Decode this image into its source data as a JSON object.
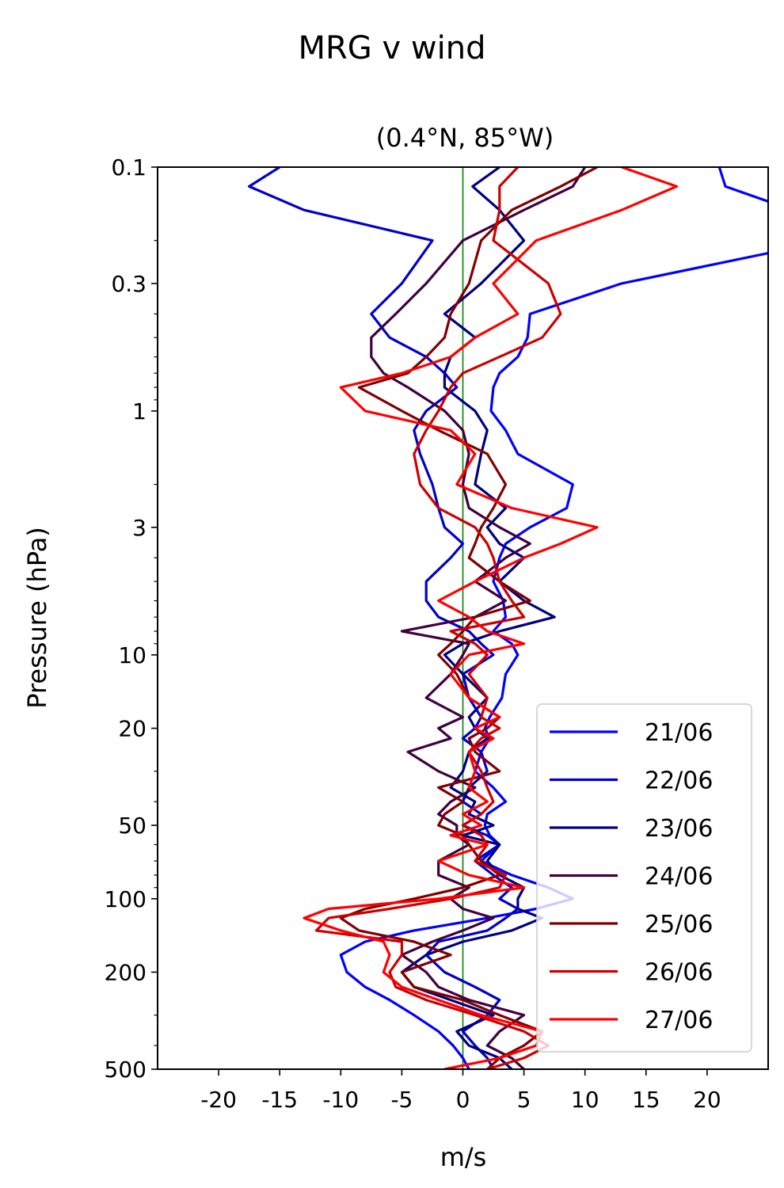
{
  "chart_data": {
    "type": "line",
    "title": "MRG v wind",
    "subtitle": "(0.4°N, 85°W)",
    "xlabel": "m/s",
    "ylabel": "Pressure (hPa)",
    "xlim": [
      -25,
      25
    ],
    "ylim": [
      500,
      0.1
    ],
    "yscale": "log",
    "grid": false,
    "legend_position": "lower-right",
    "x_ticks": [
      -20,
      -15,
      -10,
      -5,
      0,
      5,
      10,
      15,
      20
    ],
    "x_tick_labels": [
      "-20",
      "-15",
      "-10",
      "-5",
      "0",
      "5",
      "10",
      "15",
      "20"
    ],
    "y_ticks": [
      0.1,
      0.3,
      1,
      3,
      10,
      20,
      50,
      100,
      200,
      500
    ],
    "y_tick_labels": [
      "0.1",
      "0.3",
      "1",
      "3",
      "10",
      "20",
      "50",
      "100",
      "200",
      "500"
    ],
    "zero_line_color": "#008000",
    "pressure_levels": [
      0.1,
      0.12,
      0.15,
      0.2,
      0.3,
      0.4,
      0.5,
      0.6,
      0.7,
      0.8,
      1,
      1.2,
      1.5,
      2,
      2.5,
      3,
      3.5,
      4,
      5,
      6,
      7,
      8,
      9,
      10,
      12,
      15,
      18,
      20,
      22,
      25,
      30,
      35,
      40,
      45,
      50,
      55,
      60,
      70,
      80,
      90,
      100,
      110,
      120,
      135,
      150,
      170,
      200,
      230,
      260,
      300,
      350,
      400,
      450,
      500
    ],
    "series": [
      {
        "name": "21/06",
        "color": "#0000ff",
        "values": [
          21,
          21.5,
          27,
          30,
          13,
          5.5,
          5.3,
          4.5,
          3,
          2.5,
          2.3,
          3.5,
          4.5,
          9,
          8.5,
          5.5,
          3.5,
          3,
          2.5,
          3.3,
          3.5,
          2.5,
          4,
          4.5,
          3.5,
          3.2,
          2.2,
          1.8,
          2.2,
          1.5,
          1,
          2.5,
          3.5,
          2,
          1.8,
          2.2,
          3,
          1.5,
          4,
          7,
          9,
          6,
          2,
          -4,
          -8,
          -10,
          -9.5,
          -8,
          -6,
          -4,
          -2,
          -0.8,
          0,
          0.5
        ]
      },
      {
        "name": "22/06",
        "color": "#0000cc",
        "values": [
          -15,
          -17.5,
          -13,
          -2.5,
          -5,
          -7.5,
          -6,
          -3,
          -1.5,
          -0.5,
          -3,
          -4,
          -3.5,
          -2.5,
          -2,
          -1.5,
          0,
          -1,
          -3,
          -3,
          -2,
          0.5,
          1.5,
          2.5,
          0,
          0.5,
          1.5,
          1,
          0,
          1.5,
          2,
          0.5,
          0,
          1.5,
          0,
          2,
          3,
          1,
          2.5,
          4,
          3,
          4.5,
          3.5,
          2,
          -2,
          -3,
          -1.5,
          1,
          3,
          2,
          0,
          1,
          2,
          2.5
        ]
      },
      {
        "name": "23/06",
        "color": "#000080",
        "values": [
          3,
          0.8,
          3,
          5,
          1.5,
          -1.5,
          1,
          -1,
          -1.5,
          -1.5,
          1,
          2,
          1.5,
          1,
          3.5,
          2,
          3,
          5,
          3,
          5,
          7.5,
          3,
          0,
          -1.5,
          0,
          2,
          0.5,
          1,
          2,
          0.5,
          0,
          -1,
          1,
          0.5,
          2.5,
          0,
          3,
          2,
          3,
          5,
          4.5,
          4.5,
          6.5,
          4,
          0,
          -3,
          -5,
          -4,
          -1,
          2.5,
          -0.5,
          0.5,
          3,
          4
        ]
      },
      {
        "name": "24/06",
        "color": "#400040",
        "values": [
          10,
          9,
          5,
          0,
          -3,
          -5.5,
          -7.5,
          -7.5,
          -6.5,
          -4.5,
          -1.5,
          0,
          0.5,
          0,
          0.5,
          3,
          5.5,
          3.5,
          1,
          3.5,
          1,
          -5,
          0.5,
          0,
          -1,
          -3,
          0,
          -2,
          -1,
          -4.5,
          -2,
          1,
          -1,
          -2,
          -0.5,
          -0.5,
          0.5,
          -2,
          -2,
          0.5,
          -1,
          0,
          2.5,
          0,
          -2.5,
          -5,
          -3,
          -2,
          0.5,
          5,
          3,
          2,
          4,
          5
        ]
      },
      {
        "name": "25/06",
        "color": "#800000",
        "values": [
          11,
          8,
          4,
          1.5,
          0.5,
          -1,
          -1.5,
          -3,
          -4.5,
          -8.5,
          -5,
          -2,
          2,
          3.5,
          2.5,
          1.5,
          1,
          0.5,
          3,
          5.5,
          1,
          0,
          -1,
          -2,
          -0.5,
          0.5,
          3,
          2,
          0.5,
          1,
          3,
          -2,
          0,
          -1.5,
          -2,
          0,
          0.5,
          1.5,
          3,
          0,
          -4,
          -8,
          -10,
          -8.5,
          -4,
          -1,
          -5,
          -4,
          0,
          3,
          6.5,
          5,
          3,
          2
        ]
      },
      {
        "name": "26/06",
        "color": "#cc0000",
        "values": [
          4.5,
          3,
          3,
          2.5,
          7,
          8,
          6.5,
          3,
          0,
          -1,
          -2,
          -3,
          -4,
          -3.5,
          -2,
          1,
          2,
          2.5,
          3,
          4,
          5,
          -1,
          1,
          2,
          0.5,
          2,
          1.5,
          3,
          1.5,
          0.5,
          1.5,
          2,
          2.5,
          1.5,
          0,
          1.5,
          2,
          1,
          3.5,
          3,
          -1,
          -6,
          -11,
          -12,
          -5,
          -5,
          -6,
          -5.5,
          -3,
          1,
          5,
          7,
          5,
          2
        ]
      },
      {
        "name": "27/06",
        "color": "#ff0000",
        "values": [
          13,
          17.5,
          13,
          6,
          2.5,
          4.5,
          1,
          -1,
          -5,
          -10,
          -8,
          -1,
          1,
          -0.5,
          4,
          11,
          8,
          5,
          1,
          -2,
          0.5,
          2,
          5,
          0.5,
          -1,
          0.5,
          3,
          1,
          2.5,
          0.5,
          1,
          0.5,
          2,
          0,
          1.5,
          -1,
          2,
          -2,
          0.5,
          5,
          -2,
          -11,
          -13,
          -10,
          -6.5,
          -6,
          -6.5,
          -5,
          -2,
          1.5,
          6.5,
          6,
          3,
          -1.5
        ]
      }
    ]
  }
}
